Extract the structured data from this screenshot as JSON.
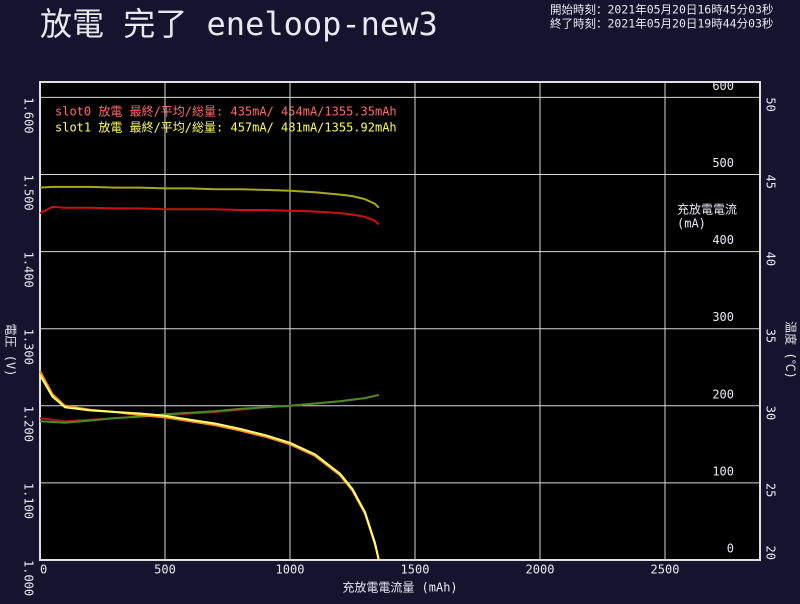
{
  "chart_data": {
    "type": "line",
    "title": "放電 完了 eneloop-new3",
    "start_time": "開始時刻：2021年05月20日16時45分03秒",
    "end_time": "終了時刻：2021年05月20日19時44分03秒",
    "legend": [
      "slot0  放電 最終/平均/総量:  435mA/ 454mA/1355.35mAh",
      "slot1  放電 最終/平均/総量:  457mA/ 481mA/1355.92mAh"
    ],
    "legend_colors": [
      "#ff6a6a",
      "#ffff50"
    ],
    "xlabel": "充放電電流量 (mAh)",
    "ylabel": "電圧 (V)",
    "y2label": [
      "充放電電流",
      "(mA)"
    ],
    "y3label": "温度 (℃)",
    "x": [
      0,
      50,
      100,
      200,
      300,
      400,
      500,
      600,
      700,
      800,
      900,
      1000,
      1100,
      1200,
      1250,
      1300,
      1340,
      1355
    ],
    "xlim": [
      0,
      2880
    ],
    "xticks": [
      0,
      500,
      1000,
      1500,
      2000,
      2500
    ],
    "ylim": [
      1.0,
      1.62
    ],
    "yticks": [
      {
        "value": 1.0,
        "label": "1.000"
      },
      {
        "value": 1.1,
        "label": "1.100"
      },
      {
        "value": 1.2,
        "label": "1.200"
      },
      {
        "value": 1.3,
        "label": "1.300"
      },
      {
        "value": 1.4,
        "label": "1.400"
      },
      {
        "value": 1.5,
        "label": "1.500"
      },
      {
        "value": 1.6,
        "label": "1.600"
      }
    ],
    "y2lim": [
      0,
      620
    ],
    "y2ticks": [
      0,
      100,
      200,
      300,
      400,
      500,
      600
    ],
    "y3lim": [
      20,
      51
    ],
    "y3ticks": [
      20,
      25,
      30,
      35,
      40,
      45,
      50
    ],
    "grid": true,
    "series": [
      {
        "axis": "y3",
        "color": "#a01818",
        "values": [
          29.2,
          29.1,
          29.0,
          29.1,
          29.2,
          29.3,
          29.4,
          29.5,
          29.6,
          29.75,
          29.9,
          30.0,
          30.15,
          30.3,
          30.4,
          30.5,
          30.65,
          30.7
        ]
      },
      {
        "axis": "y3",
        "color": "#4a8a20",
        "values": [
          29.0,
          28.95,
          28.9,
          29.05,
          29.2,
          29.3,
          29.45,
          29.55,
          29.65,
          29.8,
          29.9,
          30.0,
          30.15,
          30.3,
          30.4,
          30.5,
          30.65,
          30.7
        ]
      },
      {
        "axis": "y2",
        "color": "#d01010",
        "values": [
          450,
          458,
          457,
          457,
          456,
          456,
          455,
          455,
          455,
          454,
          454,
          453,
          452,
          450,
          448,
          445,
          440,
          435
        ]
      },
      {
        "axis": "y2",
        "color": "#a8a820",
        "values": [
          483,
          484,
          484,
          484,
          483,
          483,
          482,
          482,
          481,
          481,
          480,
          479,
          477,
          474,
          472,
          468,
          462,
          457
        ]
      },
      {
        "axis": "y",
        "color": "#ff9020",
        "values": [
          1.245,
          1.215,
          1.2,
          1.195,
          1.192,
          1.188,
          1.185,
          1.18,
          1.175,
          1.168,
          1.16,
          1.15,
          1.135,
          1.11,
          1.09,
          1.06,
          1.02,
          1.0
        ]
      },
      {
        "axis": "y",
        "color": "#ffff70",
        "values": [
          1.24,
          1.212,
          1.198,
          1.194,
          1.192,
          1.19,
          1.187,
          1.182,
          1.177,
          1.17,
          1.162,
          1.152,
          1.137,
          1.112,
          1.092,
          1.062,
          1.022,
          1.0
        ]
      }
    ]
  }
}
